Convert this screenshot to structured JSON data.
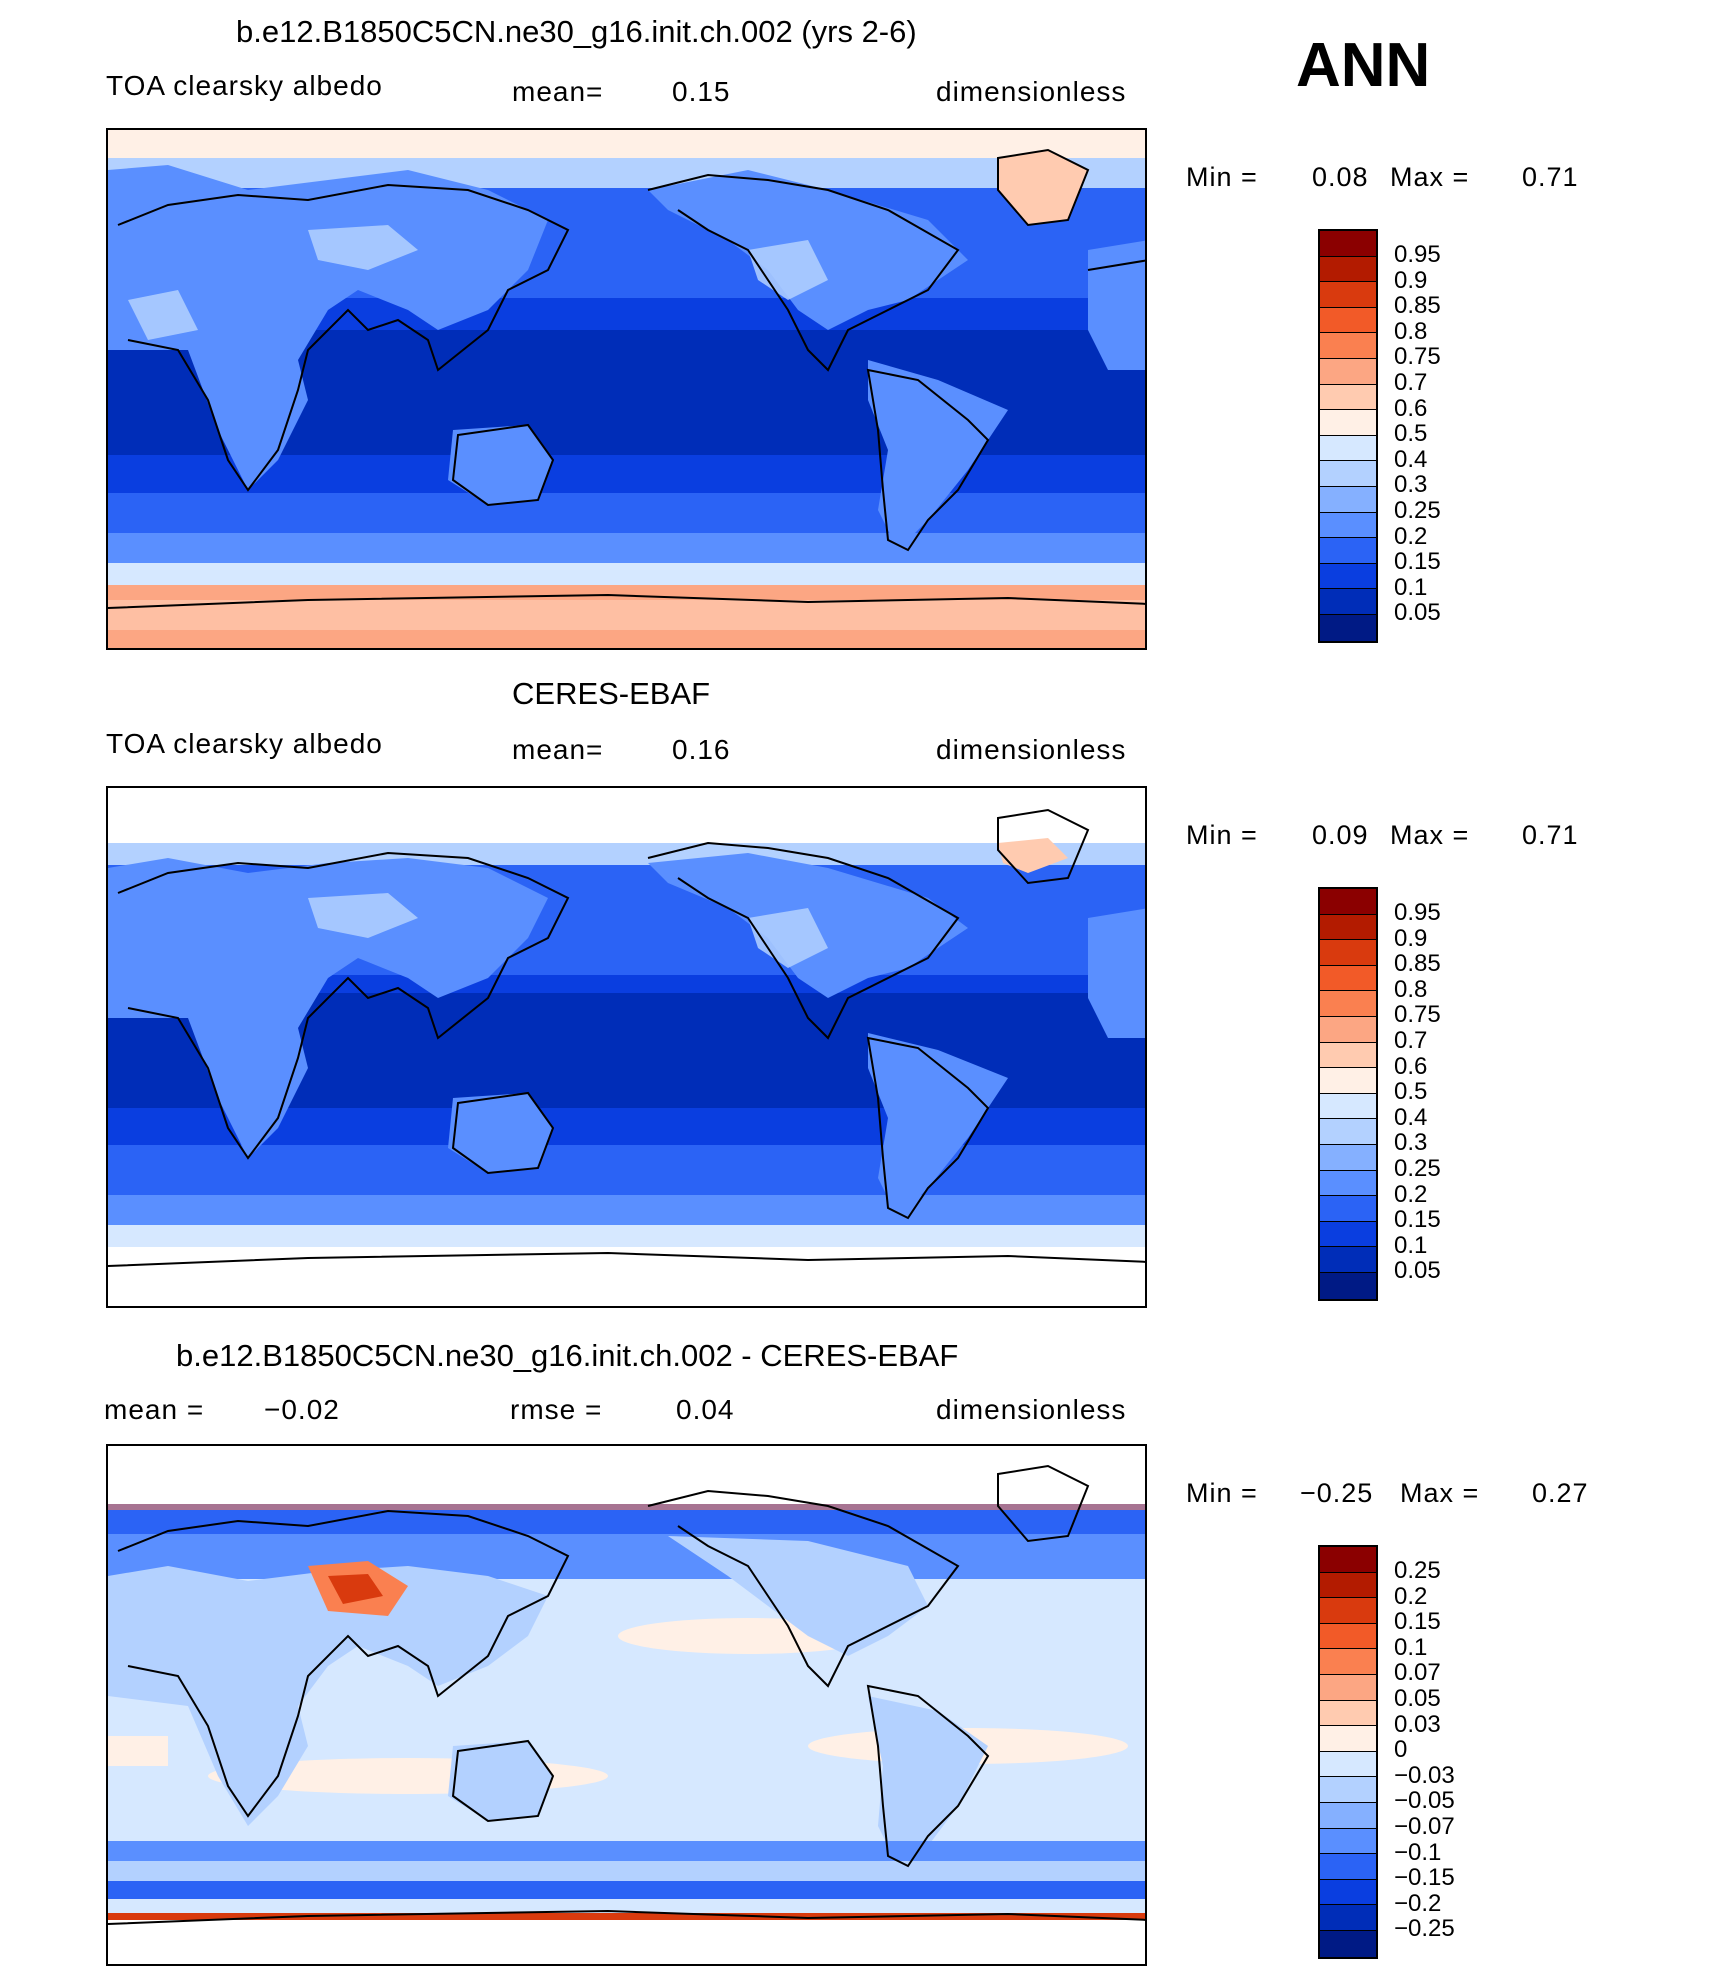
{
  "season": "ANN",
  "panels": [
    {
      "title": "b.e12.B1850C5CN.ne30_g16.init.ch.002 (yrs 2-6)",
      "left_label": "TOA clearsky albedo",
      "mid_label": "mean=",
      "mid_value": "0.15",
      "right_label": "dimensionless",
      "min_label": "Min =",
      "min_value": "0.08",
      "max_label": "Max =",
      "max_value": "0.71",
      "colorbar_labels": [
        "0.95",
        "0.9",
        "0.85",
        "0.8",
        "0.75",
        "0.7",
        "0.6",
        "0.5",
        "0.4",
        "0.3",
        "0.25",
        "0.2",
        "0.15",
        "0.1",
        "0.05"
      ],
      "colorbar_colors": [
        "#8b0000",
        "#b31b00",
        "#d93a0e",
        "#f25a28",
        "#fa8050",
        "#fca683",
        "#ffcbb0",
        "#fff0e6",
        "#d6e8ff",
        "#b3d1ff",
        "#85b0ff",
        "#5a8fff",
        "#2b63f5",
        "#0a3ee0",
        "#002db8",
        "#001a85"
      ]
    },
    {
      "title": "CERES-EBAF",
      "left_label": "TOA clearsky albedo",
      "mid_label": "mean=",
      "mid_value": "0.16",
      "right_label": "dimensionless",
      "min_label": "Min =",
      "min_value": "0.09",
      "max_label": "Max =",
      "max_value": "0.71",
      "colorbar_labels": [
        "0.95",
        "0.9",
        "0.85",
        "0.8",
        "0.75",
        "0.7",
        "0.6",
        "0.5",
        "0.4",
        "0.3",
        "0.25",
        "0.2",
        "0.15",
        "0.1",
        "0.05"
      ],
      "colorbar_colors": [
        "#8b0000",
        "#b31b00",
        "#d93a0e",
        "#f25a28",
        "#fa8050",
        "#fca683",
        "#ffcbb0",
        "#fff0e6",
        "#d6e8ff",
        "#b3d1ff",
        "#85b0ff",
        "#5a8fff",
        "#2b63f5",
        "#0a3ee0",
        "#002db8",
        "#001a85"
      ]
    },
    {
      "title": "b.e12.B1850C5CN.ne30_g16.init.ch.002 - CERES-EBAF",
      "left_label": "mean =",
      "left_value": "−0.02",
      "mid_label": "rmse =",
      "mid_value": "0.04",
      "right_label": "dimensionless",
      "min_label": "Min =",
      "min_value": "−0.25",
      "max_label": "Max =",
      "max_value": "0.27",
      "colorbar_labels": [
        "0.25",
        "0.2",
        "0.15",
        "0.1",
        "0.07",
        "0.05",
        "0.03",
        "0",
        "−0.03",
        "−0.05",
        "−0.07",
        "−0.1",
        "−0.15",
        "−0.2",
        "−0.25"
      ],
      "colorbar_colors": [
        "#8b0000",
        "#b31b00",
        "#d93a0e",
        "#f25a28",
        "#fa8050",
        "#fca683",
        "#ffcbb0",
        "#fff0e6",
        "#d6e8ff",
        "#b3d1ff",
        "#85b0ff",
        "#5a8fff",
        "#2b63f5",
        "#0a3ee0",
        "#002db8",
        "#001a85"
      ]
    }
  ]
}
